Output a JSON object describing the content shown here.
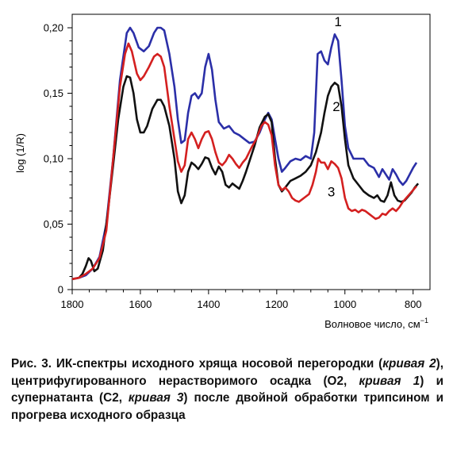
{
  "chart_data": {
    "type": "line",
    "xlabel": "Волновое число, см",
    "xlabel_sup": "−1",
    "ylabel": "log (1/R)",
    "xlim": [
      1800,
      780
    ],
    "ylim": [
      0,
      0.21
    ],
    "xticks": [
      1800,
      1600,
      1400,
      1200,
      1000,
      800
    ],
    "yticks": [
      0,
      0.05,
      0.1,
      0.15,
      0.2
    ],
    "ytick_labels": [
      "0",
      "0,05",
      "0,10",
      "0,15",
      "0,20"
    ],
    "grid": false,
    "series": [
      {
        "label": "1",
        "color": "#2b2fa8",
        "points": [
          [
            1800,
            0.008
          ],
          [
            1780,
            0.009
          ],
          [
            1760,
            0.011
          ],
          [
            1740,
            0.016
          ],
          [
            1720,
            0.025
          ],
          [
            1700,
            0.05
          ],
          [
            1680,
            0.1
          ],
          [
            1660,
            0.16
          ],
          [
            1640,
            0.196
          ],
          [
            1630,
            0.2
          ],
          [
            1620,
            0.196
          ],
          [
            1605,
            0.185
          ],
          [
            1590,
            0.182
          ],
          [
            1575,
            0.186
          ],
          [
            1560,
            0.196
          ],
          [
            1550,
            0.2
          ],
          [
            1540,
            0.2
          ],
          [
            1530,
            0.198
          ],
          [
            1515,
            0.18
          ],
          [
            1500,
            0.155
          ],
          [
            1490,
            0.13
          ],
          [
            1480,
            0.112
          ],
          [
            1470,
            0.114
          ],
          [
            1460,
            0.135
          ],
          [
            1450,
            0.148
          ],
          [
            1440,
            0.15
          ],
          [
            1430,
            0.146
          ],
          [
            1420,
            0.15
          ],
          [
            1410,
            0.17
          ],
          [
            1400,
            0.18
          ],
          [
            1390,
            0.168
          ],
          [
            1380,
            0.145
          ],
          [
            1370,
            0.128
          ],
          [
            1355,
            0.123
          ],
          [
            1340,
            0.125
          ],
          [
            1325,
            0.12
          ],
          [
            1310,
            0.118
          ],
          [
            1295,
            0.115
          ],
          [
            1280,
            0.112
          ],
          [
            1265,
            0.113
          ],
          [
            1250,
            0.12
          ],
          [
            1235,
            0.13
          ],
          [
            1225,
            0.135
          ],
          [
            1215,
            0.13
          ],
          [
            1205,
            0.115
          ],
          [
            1195,
            0.1
          ],
          [
            1185,
            0.09
          ],
          [
            1175,
            0.093
          ],
          [
            1160,
            0.098
          ],
          [
            1145,
            0.1
          ],
          [
            1130,
            0.099
          ],
          [
            1115,
            0.102
          ],
          [
            1100,
            0.1
          ],
          [
            1090,
            0.12
          ],
          [
            1080,
            0.18
          ],
          [
            1070,
            0.182
          ],
          [
            1060,
            0.175
          ],
          [
            1050,
            0.172
          ],
          [
            1040,
            0.185
          ],
          [
            1030,
            0.195
          ],
          [
            1020,
            0.19
          ],
          [
            1010,
            0.16
          ],
          [
            1000,
            0.125
          ],
          [
            990,
            0.108
          ],
          [
            975,
            0.1
          ],
          [
            960,
            0.1
          ],
          [
            945,
            0.1
          ],
          [
            930,
            0.095
          ],
          [
            915,
            0.093
          ],
          [
            900,
            0.086
          ],
          [
            890,
            0.092
          ],
          [
            880,
            0.088
          ],
          [
            870,
            0.084
          ],
          [
            860,
            0.092
          ],
          [
            850,
            0.088
          ],
          [
            840,
            0.083
          ],
          [
            830,
            0.08
          ],
          [
            820,
            0.083
          ],
          [
            810,
            0.088
          ],
          [
            800,
            0.093
          ],
          [
            790,
            0.097
          ]
        ]
      },
      {
        "label": "2",
        "color": "#111111",
        "points": [
          [
            1800,
            0.008
          ],
          [
            1780,
            0.009
          ],
          [
            1770,
            0.012
          ],
          [
            1760,
            0.018
          ],
          [
            1752,
            0.024
          ],
          [
            1745,
            0.022
          ],
          [
            1735,
            0.014
          ],
          [
            1725,
            0.016
          ],
          [
            1710,
            0.03
          ],
          [
            1695,
            0.06
          ],
          [
            1680,
            0.095
          ],
          [
            1665,
            0.13
          ],
          [
            1650,
            0.155
          ],
          [
            1640,
            0.163
          ],
          [
            1630,
            0.162
          ],
          [
            1620,
            0.15
          ],
          [
            1610,
            0.13
          ],
          [
            1600,
            0.12
          ],
          [
            1590,
            0.12
          ],
          [
            1580,
            0.125
          ],
          [
            1565,
            0.138
          ],
          [
            1550,
            0.145
          ],
          [
            1540,
            0.145
          ],
          [
            1530,
            0.14
          ],
          [
            1515,
            0.125
          ],
          [
            1500,
            0.1
          ],
          [
            1490,
            0.075
          ],
          [
            1480,
            0.066
          ],
          [
            1470,
            0.072
          ],
          [
            1460,
            0.09
          ],
          [
            1450,
            0.097
          ],
          [
            1440,
            0.095
          ],
          [
            1430,
            0.092
          ],
          [
            1420,
            0.096
          ],
          [
            1410,
            0.101
          ],
          [
            1400,
            0.1
          ],
          [
            1390,
            0.093
          ],
          [
            1380,
            0.088
          ],
          [
            1370,
            0.094
          ],
          [
            1360,
            0.09
          ],
          [
            1350,
            0.08
          ],
          [
            1340,
            0.078
          ],
          [
            1330,
            0.081
          ],
          [
            1320,
            0.079
          ],
          [
            1310,
            0.077
          ],
          [
            1300,
            0.083
          ],
          [
            1290,
            0.09
          ],
          [
            1280,
            0.098
          ],
          [
            1265,
            0.11
          ],
          [
            1250,
            0.124
          ],
          [
            1235,
            0.132
          ],
          [
            1225,
            0.134
          ],
          [
            1215,
            0.128
          ],
          [
            1205,
            0.1
          ],
          [
            1195,
            0.08
          ],
          [
            1185,
            0.075
          ],
          [
            1175,
            0.078
          ],
          [
            1160,
            0.083
          ],
          [
            1145,
            0.085
          ],
          [
            1130,
            0.087
          ],
          [
            1115,
            0.09
          ],
          [
            1100,
            0.095
          ],
          [
            1085,
            0.105
          ],
          [
            1070,
            0.12
          ],
          [
            1060,
            0.135
          ],
          [
            1050,
            0.148
          ],
          [
            1040,
            0.155
          ],
          [
            1030,
            0.158
          ],
          [
            1020,
            0.156
          ],
          [
            1010,
            0.14
          ],
          [
            1000,
            0.115
          ],
          [
            990,
            0.095
          ],
          [
            975,
            0.085
          ],
          [
            960,
            0.08
          ],
          [
            945,
            0.075
          ],
          [
            930,
            0.072
          ],
          [
            915,
            0.07
          ],
          [
            905,
            0.072
          ],
          [
            895,
            0.068
          ],
          [
            885,
            0.067
          ],
          [
            875,
            0.072
          ],
          [
            865,
            0.082
          ],
          [
            855,
            0.072
          ],
          [
            845,
            0.068
          ],
          [
            835,
            0.067
          ],
          [
            825,
            0.068
          ],
          [
            815,
            0.071
          ],
          [
            805,
            0.074
          ],
          [
            795,
            0.078
          ],
          [
            785,
            0.081
          ]
        ]
      },
      {
        "label": "3",
        "color": "#d42020",
        "points": [
          [
            1800,
            0.008
          ],
          [
            1780,
            0.009
          ],
          [
            1760,
            0.012
          ],
          [
            1740,
            0.016
          ],
          [
            1720,
            0.024
          ],
          [
            1700,
            0.045
          ],
          [
            1680,
            0.1
          ],
          [
            1660,
            0.155
          ],
          [
            1645,
            0.18
          ],
          [
            1635,
            0.188
          ],
          [
            1625,
            0.182
          ],
          [
            1610,
            0.165
          ],
          [
            1600,
            0.16
          ],
          [
            1590,
            0.163
          ],
          [
            1575,
            0.17
          ],
          [
            1560,
            0.178
          ],
          [
            1550,
            0.18
          ],
          [
            1540,
            0.178
          ],
          [
            1530,
            0.17
          ],
          [
            1515,
            0.14
          ],
          [
            1500,
            0.115
          ],
          [
            1490,
            0.098
          ],
          [
            1480,
            0.09
          ],
          [
            1470,
            0.095
          ],
          [
            1460,
            0.115
          ],
          [
            1450,
            0.12
          ],
          [
            1440,
            0.115
          ],
          [
            1430,
            0.108
          ],
          [
            1420,
            0.115
          ],
          [
            1410,
            0.12
          ],
          [
            1400,
            0.121
          ],
          [
            1390,
            0.115
          ],
          [
            1380,
            0.105
          ],
          [
            1370,
            0.097
          ],
          [
            1360,
            0.095
          ],
          [
            1350,
            0.098
          ],
          [
            1340,
            0.103
          ],
          [
            1330,
            0.1
          ],
          [
            1320,
            0.096
          ],
          [
            1310,
            0.093
          ],
          [
            1300,
            0.097
          ],
          [
            1290,
            0.1
          ],
          [
            1275,
            0.108
          ],
          [
            1260,
            0.115
          ],
          [
            1245,
            0.125
          ],
          [
            1235,
            0.128
          ],
          [
            1225,
            0.126
          ],
          [
            1215,
            0.118
          ],
          [
            1205,
            0.095
          ],
          [
            1195,
            0.08
          ],
          [
            1185,
            0.076
          ],
          [
            1175,
            0.078
          ],
          [
            1165,
            0.075
          ],
          [
            1155,
            0.07
          ],
          [
            1145,
            0.068
          ],
          [
            1135,
            0.067
          ],
          [
            1120,
            0.07
          ],
          [
            1105,
            0.073
          ],
          [
            1095,
            0.08
          ],
          [
            1085,
            0.09
          ],
          [
            1078,
            0.1
          ],
          [
            1070,
            0.097
          ],
          [
            1060,
            0.097
          ],
          [
            1050,
            0.092
          ],
          [
            1040,
            0.098
          ],
          [
            1030,
            0.096
          ],
          [
            1020,
            0.093
          ],
          [
            1010,
            0.085
          ],
          [
            1000,
            0.07
          ],
          [
            990,
            0.062
          ],
          [
            980,
            0.06
          ],
          [
            970,
            0.061
          ],
          [
            960,
            0.059
          ],
          [
            950,
            0.061
          ],
          [
            940,
            0.06
          ],
          [
            930,
            0.058
          ],
          [
            920,
            0.056
          ],
          [
            910,
            0.054
          ],
          [
            900,
            0.055
          ],
          [
            890,
            0.058
          ],
          [
            880,
            0.057
          ],
          [
            870,
            0.06
          ],
          [
            860,
            0.062
          ],
          [
            850,
            0.06
          ],
          [
            840,
            0.063
          ],
          [
            830,
            0.067
          ],
          [
            820,
            0.07
          ],
          [
            810,
            0.073
          ],
          [
            800,
            0.076
          ],
          [
            790,
            0.079
          ]
        ]
      }
    ]
  },
  "caption": {
    "part1": "Рис. 3. ИК-спектры исходного хряща носовой перегородки (",
    "curve2": "кривая 2",
    "part2": "), центрифугированного нерастворимого осадка (О2, ",
    "curve1": "кривая 1",
    "part3": ") и супернатанта (С2, ",
    "curve3": "кривая 3",
    "part4": ") после двойной обработки трипсином и прогрева исходного образца"
  }
}
